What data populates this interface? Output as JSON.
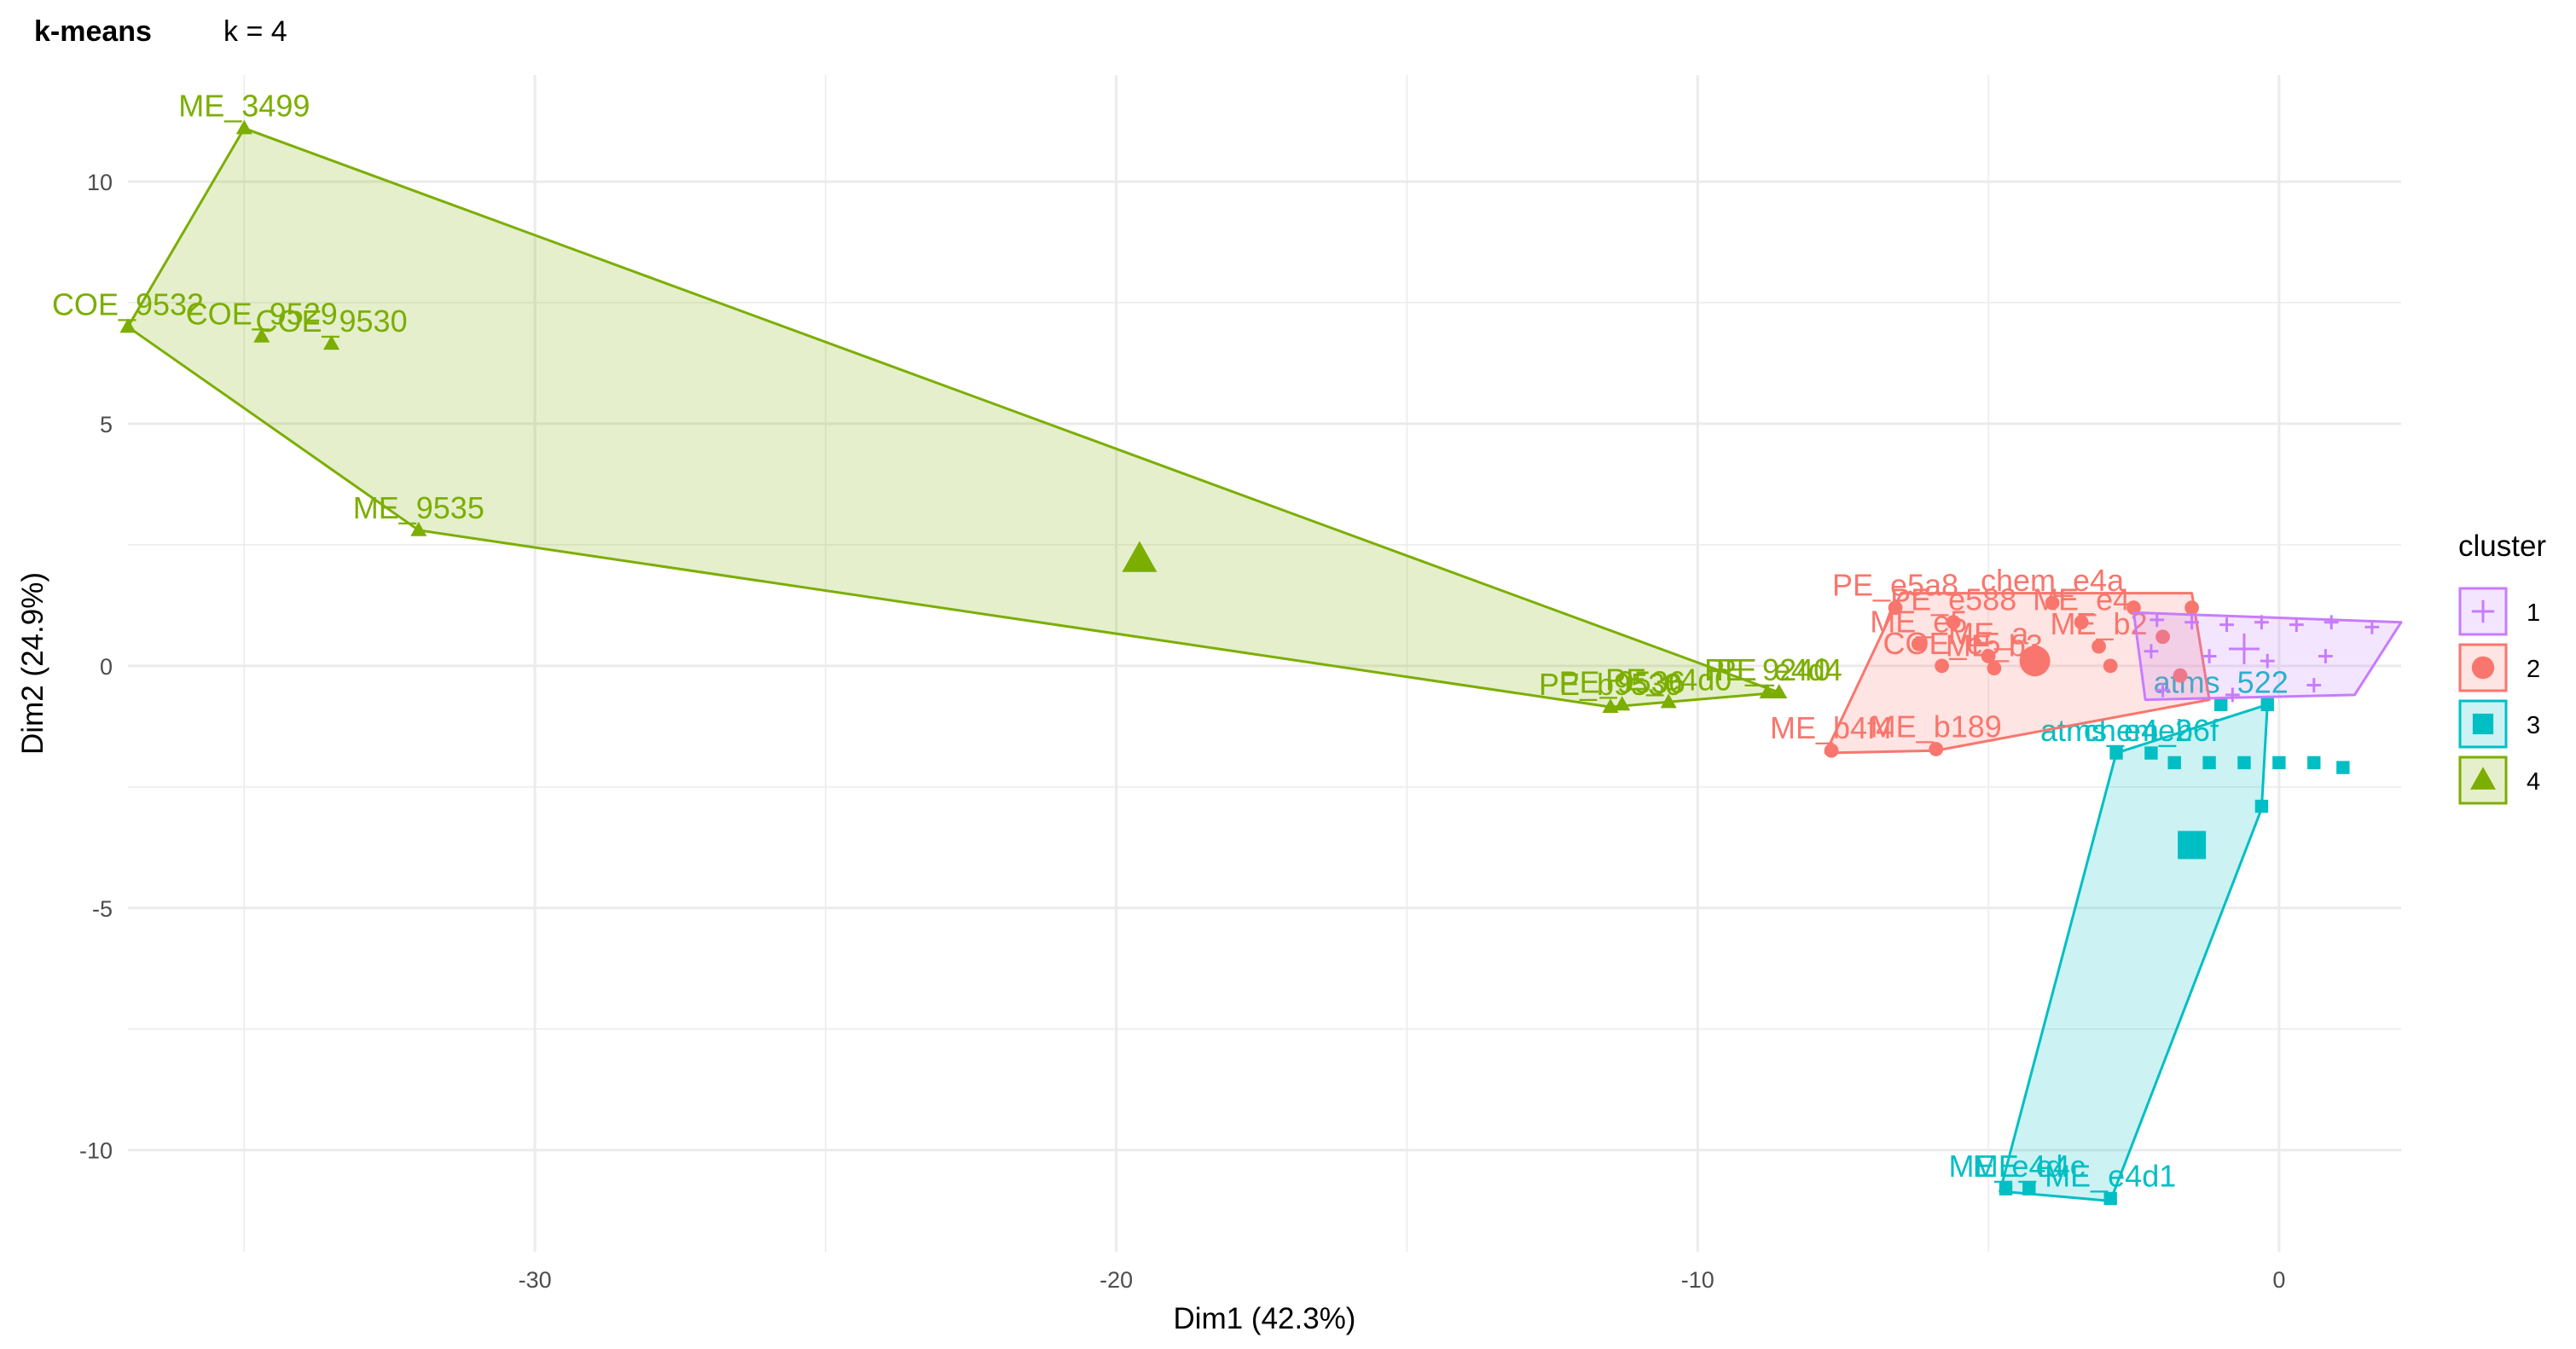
{
  "chart_data": {
    "type": "scatter",
    "title": "k-means",
    "subtitle": "k = 4",
    "xlabel": "Dim1 (42.3%)",
    "ylabel": "Dim2 (24.9%)",
    "xlim": [
      -37,
      2.1
    ],
    "ylim": [
      -12.1,
      12.2
    ],
    "x_ticks": [
      -30,
      -20,
      -10,
      0
    ],
    "y_ticks": [
      -10,
      -5,
      0,
      5,
      10
    ],
    "grid": true,
    "legend": {
      "title": "cluster",
      "position": "right",
      "entries": [
        "1",
        "2",
        "3",
        "4"
      ]
    },
    "colors": {
      "1": "#C77CFF",
      "2": "#F8766D",
      "3": "#00BFC4",
      "4": "#7CAE00"
    },
    "series": [
      {
        "name": "1",
        "shape": "cross",
        "points": [
          {
            "x": -2.1,
            "y": 0.95,
            "label": ""
          },
          {
            "x": -1.5,
            "y": 0.9,
            "label": ""
          },
          {
            "x": -0.9,
            "y": 0.85,
            "label": ""
          },
          {
            "x": -0.3,
            "y": 0.9,
            "label": ""
          },
          {
            "x": 0.3,
            "y": 0.85,
            "label": ""
          },
          {
            "x": 0.9,
            "y": 0.9,
            "label": ""
          },
          {
            "x": 1.6,
            "y": 0.8,
            "label": ""
          },
          {
            "x": -2.2,
            "y": 0.3,
            "label": ""
          },
          {
            "x": -1.2,
            "y": 0.2,
            "label": ""
          },
          {
            "x": -0.2,
            "y": 0.1,
            "label": ""
          },
          {
            "x": 0.8,
            "y": 0.2,
            "label": ""
          },
          {
            "x": -2.0,
            "y": -0.5,
            "label": ""
          },
          {
            "x": -0.8,
            "y": -0.6,
            "label": ""
          },
          {
            "x": 0.6,
            "y": -0.4,
            "label": ""
          }
        ],
        "hull": [
          [
            -2.5,
            1.1
          ],
          [
            2.1,
            0.9
          ],
          [
            1.3,
            -0.6
          ],
          [
            -2.3,
            -0.7
          ]
        ],
        "centroid": {
          "x": -0.6,
          "y": 0.35
        }
      },
      {
        "name": "2",
        "shape": "circle",
        "points": [
          {
            "x": -7.7,
            "y": -1.75,
            "label": "ME_b4f4"
          },
          {
            "x": -5.9,
            "y": -1.72,
            "label": "ME_b189"
          },
          {
            "x": -6.6,
            "y": 1.2,
            "label": "PE_e5a8"
          },
          {
            "x": -5.6,
            "y": 0.9,
            "label": "PE_e588"
          },
          {
            "x": -6.2,
            "y": 0.45,
            "label": "ME_e5"
          },
          {
            "x": -5.8,
            "y": 0.0,
            "label": "COE_e5"
          },
          {
            "x": -5.0,
            "y": 0.2,
            "label": "ME_a"
          },
          {
            "x": -4.9,
            "y": -0.05,
            "label": "ME_b3"
          },
          {
            "x": -3.9,
            "y": 1.3,
            "label": "chem_e4a"
          },
          {
            "x": -3.4,
            "y": 0.9,
            "label": "ME_e4"
          },
          {
            "x": -3.1,
            "y": 0.4,
            "label": "ME_b2"
          },
          {
            "x": -2.9,
            "y": 0.0,
            "label": ""
          },
          {
            "x": -2.5,
            "y": 1.2,
            "label": ""
          },
          {
            "x": -2.0,
            "y": 0.6,
            "label": ""
          },
          {
            "x": -1.7,
            "y": -0.2,
            "label": ""
          },
          {
            "x": -1.5,
            "y": 1.2,
            "label": ""
          }
        ],
        "hull": [
          [
            -7.8,
            -1.8
          ],
          [
            -6.5,
            1.5
          ],
          [
            -1.5,
            1.5
          ],
          [
            -1.2,
            -0.7
          ],
          [
            -5.9,
            -1.75
          ]
        ],
        "centroid": {
          "x": -4.2,
          "y": 0.1
        }
      },
      {
        "name": "3",
        "shape": "square",
        "points": [
          {
            "x": -4.7,
            "y": -10.8,
            "label": "ME_e4d"
          },
          {
            "x": -4.3,
            "y": -10.8,
            "label": "ME_e4c"
          },
          {
            "x": -2.9,
            "y": -11.0,
            "label": "ME_e4d1"
          },
          {
            "x": -2.8,
            "y": -1.8,
            "label": "atms_e4e2"
          },
          {
            "x": -2.2,
            "y": -1.8,
            "label": "chem_b6f"
          },
          {
            "x": -1.8,
            "y": -2.0,
            "label": ""
          },
          {
            "x": -1.2,
            "y": -2.0,
            "label": ""
          },
          {
            "x": -0.6,
            "y": -2.0,
            "label": ""
          },
          {
            "x": 0.0,
            "y": -2.0,
            "label": ""
          },
          {
            "x": 0.6,
            "y": -2.0,
            "label": ""
          },
          {
            "x": 1.1,
            "y": -2.1,
            "label": ""
          },
          {
            "x": -0.3,
            "y": -2.9,
            "label": ""
          },
          {
            "x": -1.0,
            "y": -0.8,
            "label": "atms_522"
          },
          {
            "x": -0.2,
            "y": -0.8,
            "label": ""
          }
        ],
        "hull": [
          [
            -4.8,
            -10.85
          ],
          [
            -2.9,
            -11.05
          ],
          [
            -0.3,
            -2.95
          ],
          [
            -0.2,
            -0.8
          ],
          [
            -2.8,
            -1.8
          ]
        ],
        "centroid": {
          "x": -1.5,
          "y": -3.7
        }
      },
      {
        "name": "4",
        "shape": "triangle",
        "points": [
          {
            "x": -35.0,
            "y": 11.1,
            "label": "ME_3499"
          },
          {
            "x": -37.0,
            "y": 7.0,
            "label": "COE_9532"
          },
          {
            "x": -34.7,
            "y": 6.8,
            "label": "COE_9529"
          },
          {
            "x": -33.5,
            "y": 6.65,
            "label": "COE_9530"
          },
          {
            "x": -32.0,
            "y": 2.8,
            "label": "ME_9535"
          },
          {
            "x": -11.5,
            "y": -0.85,
            "label": "PE_b9530"
          },
          {
            "x": -11.3,
            "y": -0.8,
            "label": "PE_9536"
          },
          {
            "x": -10.5,
            "y": -0.75,
            "label": "PE_e4d0"
          },
          {
            "x": -8.8,
            "y": -0.55,
            "label": "PE_9240"
          },
          {
            "x": -8.6,
            "y": -0.55,
            "label": "PE_e4d4"
          }
        ],
        "hull": [
          [
            -35.0,
            11.1
          ],
          [
            -37.0,
            7.0
          ],
          [
            -32.0,
            2.8
          ],
          [
            -11.5,
            -0.85
          ],
          [
            -8.6,
            -0.55
          ]
        ],
        "centroid": {
          "x": -19.6,
          "y": 2.2
        }
      }
    ]
  }
}
